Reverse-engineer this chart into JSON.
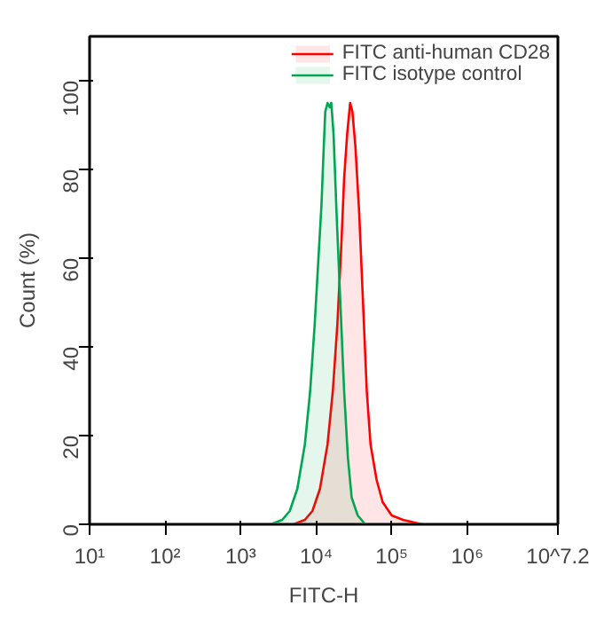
{
  "chart_data": {
    "type": "area",
    "xlabel": "FITC-H",
    "ylabel": "Count (%)",
    "log": "x",
    "xlim": [
      10,
      15848932
    ],
    "ylim": [
      0,
      110
    ],
    "xticks": [
      {
        "value": 10,
        "label": "10¹"
      },
      {
        "value": 100,
        "label": "10²"
      },
      {
        "value": 1000,
        "label": "10³"
      },
      {
        "value": 10000,
        "label": "10⁴"
      },
      {
        "value": 100000,
        "label": "10⁵"
      },
      {
        "value": 1000000,
        "label": "10⁶"
      },
      {
        "value": 15848932,
        "label": "10^7.2"
      }
    ],
    "yticks": [
      0,
      20,
      40,
      60,
      80,
      100
    ],
    "grid": false,
    "legend": "top right",
    "series": [
      {
        "name": "FITC anti-human CD28",
        "color": "#ff0000",
        "x": [
          5012,
          7079,
          8913,
          11220,
          14125,
          16596,
          19055,
          21380,
          23442,
          25704,
          28184,
          30200,
          33113,
          37154,
          41687,
          46774,
          52481,
          63096,
          75858,
          100000,
          141254,
          251189
        ],
        "values": [
          0,
          1,
          3,
          8,
          18,
          30,
          45,
          62,
          78,
          88,
          95,
          93,
          85,
          70,
          50,
          30,
          18,
          10,
          5,
          2,
          1,
          0
        ]
      },
      {
        "name": "FITC isotype control",
        "color": "#00a651",
        "x": [
          2512,
          3548,
          4467,
          5623,
          7079,
          8318,
          9550,
          10715,
          11749,
          12589,
          13183,
          14125,
          15136,
          15849,
          16982,
          18621,
          20893,
          23442,
          26303,
          29512,
          35481,
          44668
        ],
        "values": [
          0,
          1,
          3,
          8,
          18,
          30,
          45,
          60,
          72,
          85,
          93,
          95,
          94,
          95,
          88,
          70,
          50,
          30,
          15,
          6,
          2,
          0
        ]
      }
    ]
  }
}
